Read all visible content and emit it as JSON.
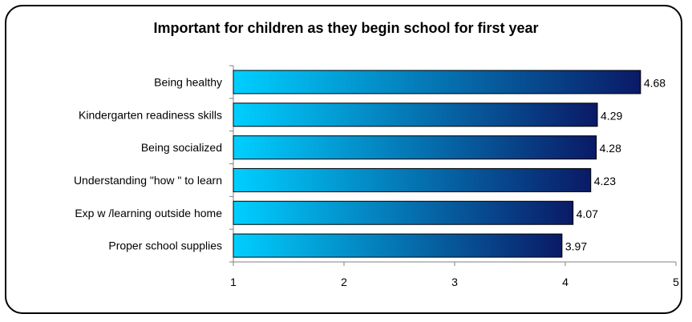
{
  "chart_data": {
    "type": "bar",
    "orientation": "horizontal",
    "title": "Important for children as they begin school for first year",
    "categories": [
      "Being healthy",
      "Kindergarten readiness skills",
      "Being socialized",
      "Understanding \"how \" to learn",
      "Exp w /learning outside home",
      "Proper school supplies"
    ],
    "values": [
      4.68,
      4.29,
      4.28,
      4.23,
      4.07,
      3.97
    ],
    "value_labels": [
      "4.68",
      "4.29",
      "4.28",
      "4.23",
      "4.07",
      "3.97"
    ],
    "xlim": [
      1,
      5
    ],
    "xticks": [
      1,
      2,
      3,
      4,
      5
    ],
    "xtick_labels": [
      "1",
      "2",
      "3",
      "4",
      "5"
    ],
    "grid": false,
    "legend": "none",
    "colors": {
      "bar_start": "#00cfff",
      "bar_end": "#0a1a66",
      "axis": "#808080"
    }
  }
}
